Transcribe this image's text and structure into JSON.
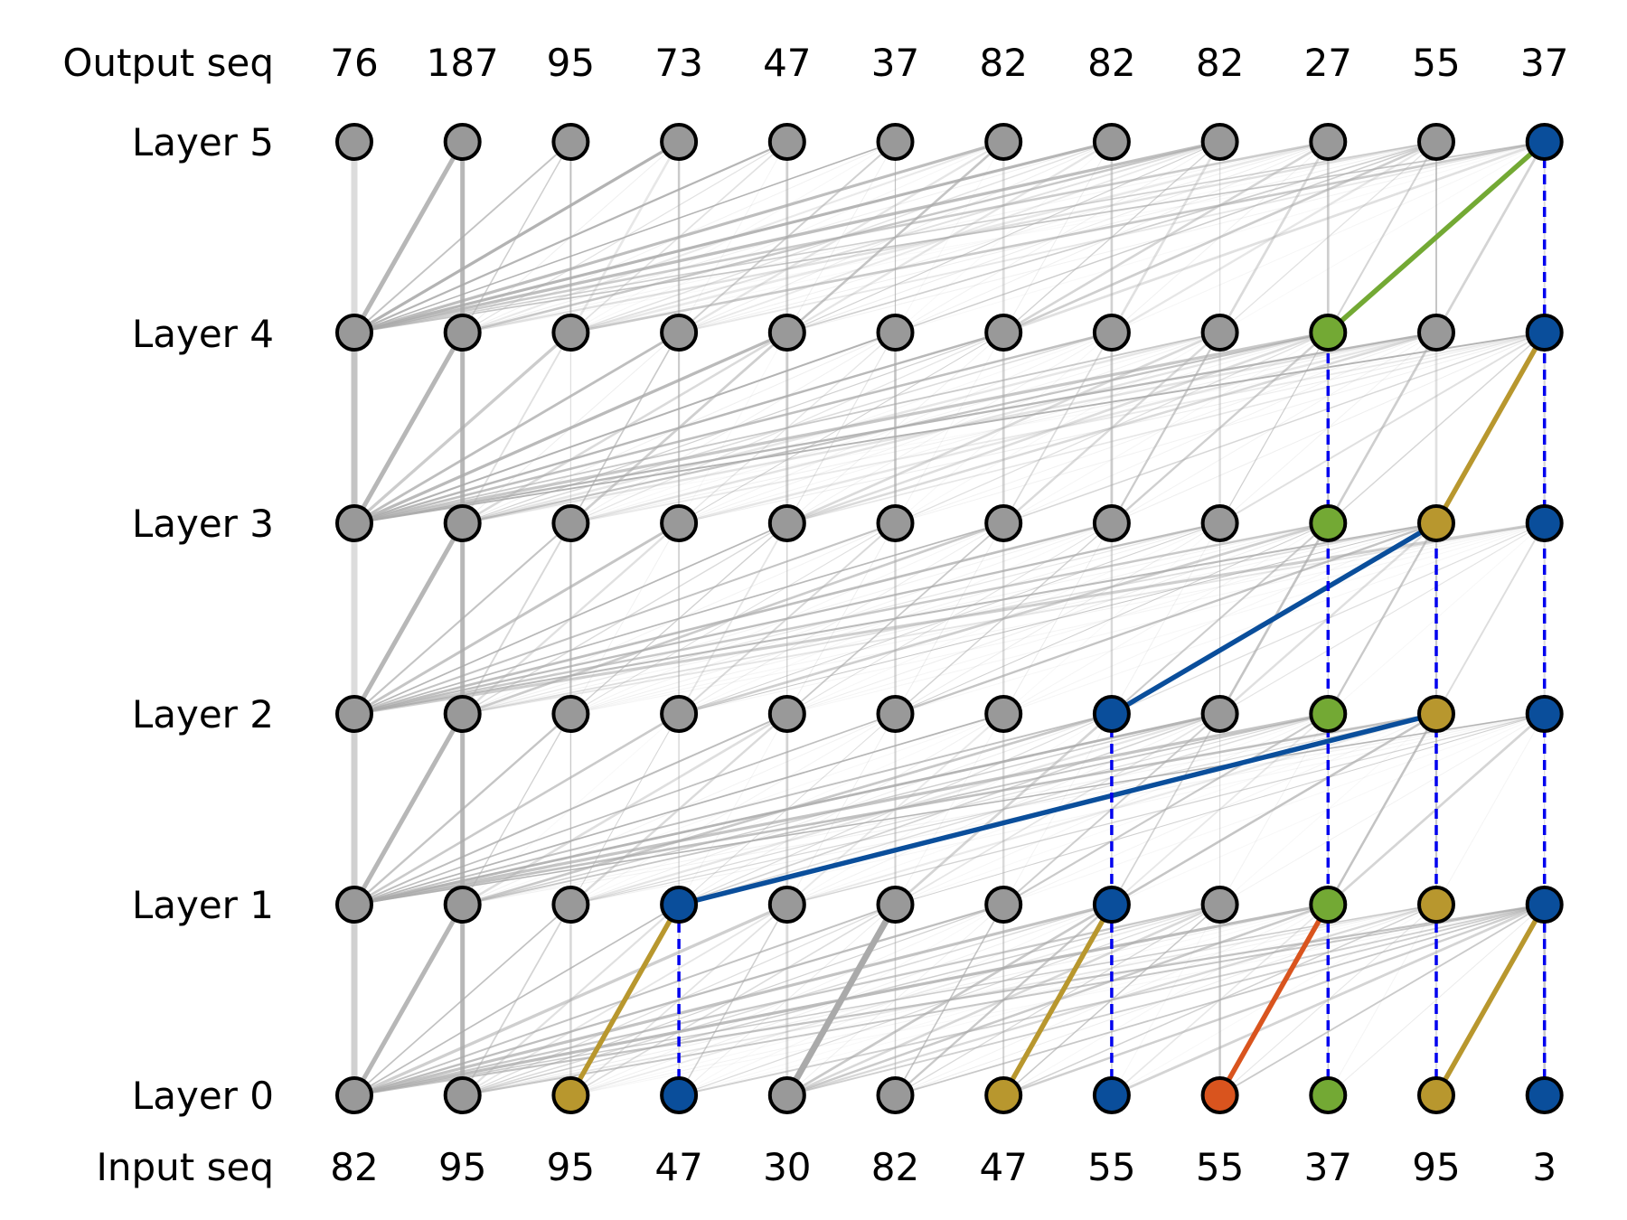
{
  "labels": {
    "output": "Output seq",
    "input": "Input seq",
    "layers": [
      "Layer 0",
      "Layer 1",
      "Layer 2",
      "Layer 3",
      "Layer 4",
      "Layer 5"
    ]
  },
  "output_seq": [
    "76",
    "187",
    "95",
    "73",
    "47",
    "37",
    "82",
    "82",
    "82",
    "27",
    "55",
    "37"
  ],
  "input_seq": [
    "82",
    "95",
    "95",
    "47",
    "30",
    "82",
    "47",
    "55",
    "55",
    "37",
    "95",
    "3"
  ],
  "colors": {
    "gray": "#999999",
    "blue": "#0a4e9b",
    "gold": "#b8972e",
    "green": "#73a934",
    "orange": "#d9541e",
    "residual": "#0000ee",
    "edge": "#aaaaaa"
  },
  "node_colors": [
    [
      "gray",
      "gray",
      "gold",
      "blue",
      "gray",
      "gray",
      "gold",
      "blue",
      "orange",
      "green",
      "gold",
      "blue"
    ],
    [
      "gray",
      "gray",
      "gray",
      "blue",
      "gray",
      "gray",
      "gray",
      "blue",
      "gray",
      "green",
      "gold",
      "blue"
    ],
    [
      "gray",
      "gray",
      "gray",
      "gray",
      "gray",
      "gray",
      "gray",
      "blue",
      "gray",
      "green",
      "gold",
      "blue"
    ],
    [
      "gray",
      "gray",
      "gray",
      "gray",
      "gray",
      "gray",
      "gray",
      "gray",
      "gray",
      "green",
      "gold",
      "blue"
    ],
    [
      "gray",
      "gray",
      "gray",
      "gray",
      "gray",
      "gray",
      "gray",
      "gray",
      "gray",
      "green",
      "gray",
      "blue"
    ],
    [
      "gray",
      "gray",
      "gray",
      "gray",
      "gray",
      "gray",
      "gray",
      "gray",
      "gray",
      "gray",
      "gray",
      "blue"
    ]
  ],
  "highlight_edges": [
    {
      "from": [
        0,
        2
      ],
      "to": [
        1,
        3
      ],
      "color": "gold"
    },
    {
      "from": [
        0,
        6
      ],
      "to": [
        1,
        7
      ],
      "color": "gold"
    },
    {
      "from": [
        0,
        8
      ],
      "to": [
        1,
        9
      ],
      "color": "orange"
    },
    {
      "from": [
        0,
        10
      ],
      "to": [
        1,
        11
      ],
      "color": "gold"
    },
    {
      "from": [
        1,
        3
      ],
      "to": [
        2,
        10
      ],
      "color": "blue"
    },
    {
      "from": [
        2,
        7
      ],
      "to": [
        3,
        10
      ],
      "color": "blue"
    },
    {
      "from": [
        3,
        10
      ],
      "to": [
        4,
        11
      ],
      "color": "gold"
    },
    {
      "from": [
        4,
        9
      ],
      "to": [
        5,
        11
      ],
      "color": "green"
    }
  ],
  "residual_edges": [
    {
      "pos": 3,
      "from": 0,
      "to": 1
    },
    {
      "pos": 7,
      "from": 0,
      "to": 2
    },
    {
      "pos": 9,
      "from": 0,
      "to": 4
    },
    {
      "pos": 10,
      "from": 0,
      "to": 3
    },
    {
      "pos": 11,
      "from": 0,
      "to": 5
    }
  ]
}
